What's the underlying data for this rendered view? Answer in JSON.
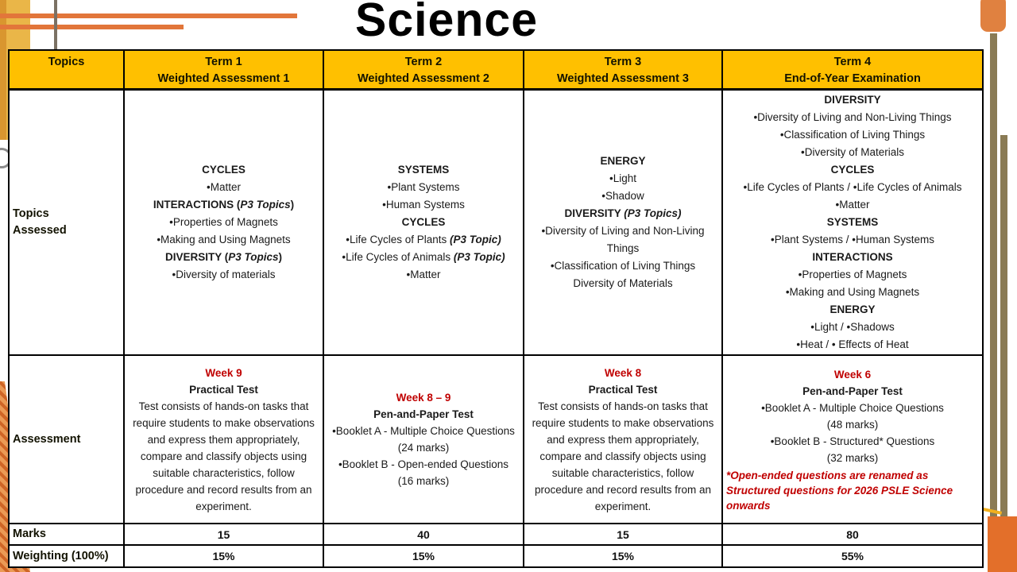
{
  "title": "Science",
  "decor_colors": {
    "header_fill": "#FFC000",
    "accent_red": "#C00000",
    "accent_orange": "#E2763A",
    "olive_bar": "#8A7B55",
    "gold_bar": "#EAB648"
  },
  "table": {
    "header": [
      {
        "lines": [
          "Topics"
        ]
      },
      {
        "lines": [
          "Term 1",
          "Weighted Assessment 1"
        ]
      },
      {
        "lines": [
          "Term 2",
          "Weighted Assessment 2"
        ]
      },
      {
        "lines": [
          "Term 3",
          "Weighted Assessment 3"
        ]
      },
      {
        "lines": [
          "Term 4",
          "End-of-Year Examination"
        ]
      }
    ],
    "rows": [
      {
        "label": "Topics\nAssessed",
        "cells": [
          [
            {
              "parts": [
                [
                  "CYCLES",
                  "b"
                ]
              ]
            },
            "•Matter",
            {
              "parts": [
                [
                  "INTERACTIONS (",
                  "b"
                ],
                [
                  "P3 Topics",
                  "bi"
                ],
                [
                  ")",
                  "b"
                ]
              ]
            },
            "•Properties of Magnets",
            "•Making and Using Magnets",
            {
              "parts": [
                [
                  "DIVERSITY (",
                  "b"
                ],
                [
                  "P3 Topics",
                  "bi"
                ],
                [
                  ")",
                  "b"
                ]
              ]
            },
            "•Diversity of materials"
          ],
          [
            {
              "parts": [
                [
                  "SYSTEMS",
                  "b"
                ]
              ]
            },
            "•Plant Systems",
            "•Human Systems",
            {
              "parts": [
                [
                  "CYCLES",
                  "b"
                ]
              ]
            },
            {
              "parts": [
                [
                  "•Life Cycles of Plants ",
                  ""
                ],
                [
                  "(P3 Topic)",
                  "bi"
                ]
              ]
            },
            {
              "parts": [
                [
                  "•Life Cycles of Animals ",
                  ""
                ],
                [
                  "(P3 Topic)",
                  "bi"
                ]
              ]
            },
            "•Matter"
          ],
          [
            {
              "parts": [
                [
                  "ENERGY",
                  "b"
                ]
              ]
            },
            "•Light",
            "•Shadow",
            {
              "parts": [
                [
                  "DIVERSITY ",
                  "b"
                ],
                [
                  "(P3 Topics)",
                  "bi"
                ]
              ]
            },
            "•Diversity of Living  and Non-Living Things",
            "•Classification of Living Things",
            "Diversity of Materials"
          ],
          [
            {
              "parts": [
                [
                  "DIVERSITY",
                  "b"
                ]
              ]
            },
            "•Diversity of Living  and Non-Living Things",
            "•Classification of Living Things",
            "•Diversity of Materials",
            {
              "parts": [
                [
                  "CYCLES",
                  "b"
                ]
              ]
            },
            "•Life Cycles of Plants / •Life Cycles of Animals",
            "•Matter",
            {
              "parts": [
                [
                  "SYSTEMS",
                  "b"
                ]
              ]
            },
            "•Plant Systems / •Human Systems",
            {
              "parts": [
                [
                  "INTERACTIONS",
                  "b"
                ]
              ]
            },
            "•Properties of Magnets",
            "•Making and Using Magnets",
            {
              "parts": [
                [
                  "ENERGY",
                  "b"
                ]
              ]
            },
            "•Light / •Shadows",
            "•Heat / • Effects of Heat"
          ]
        ]
      },
      {
        "label": "Assessment",
        "cells": [
          [
            {
              "cls": "red",
              "parts": [
                [
                  "Week 9",
                  "b"
                ]
              ]
            },
            {
              "parts": [
                [
                  "Practical Test",
                  "b"
                ]
              ]
            },
            "Test consists of hands-on tasks that require students to make observations and express them appropriately, compare and classify objects using suitable characteristics, follow procedure and record results from an experiment."
          ],
          [
            {
              "cls": "red",
              "parts": [
                [
                  "Week 8 – 9",
                  "b"
                ]
              ]
            },
            {
              "parts": [
                [
                  "Pen-and-Paper Test",
                  "b"
                ]
              ]
            },
            "•Booklet A - Multiple Choice Questions",
            "(24 marks)",
            "•Booklet B - Open-ended Questions",
            "(16 marks)"
          ],
          [
            {
              "cls": "red",
              "parts": [
                [
                  "Week 8",
                  "b"
                ]
              ]
            },
            {
              "parts": [
                [
                  "Practical Test",
                  "b"
                ]
              ]
            },
            "Test consists of hands-on tasks that require students to make observations and express them appropriately, compare and classify objects using suitable characteristics, follow procedure and record results from an experiment."
          ],
          [
            {
              "cls": "red",
              "parts": [
                [
                  "Week 6",
                  "b"
                ]
              ]
            },
            {
              "parts": [
                [
                  "Pen-and-Paper Test",
                  "b"
                ]
              ]
            },
            "•Booklet A - Multiple Choice Questions",
            "(48 marks)",
            "•Booklet B - Structured* Questions",
            "(32 marks)",
            {
              "cls": "note",
              "parts": [
                [
                  "*Open-ended questions are renamed as Structured questions for 2026 PSLE Science onwards",
                  "bi"
                ]
              ]
            }
          ]
        ]
      },
      {
        "label": "Marks",
        "values": [
          "15",
          "40",
          "15",
          "80"
        ]
      },
      {
        "label": "Weighting (100%)",
        "values": [
          "15%",
          "15%",
          "15%",
          "55%"
        ]
      }
    ]
  }
}
